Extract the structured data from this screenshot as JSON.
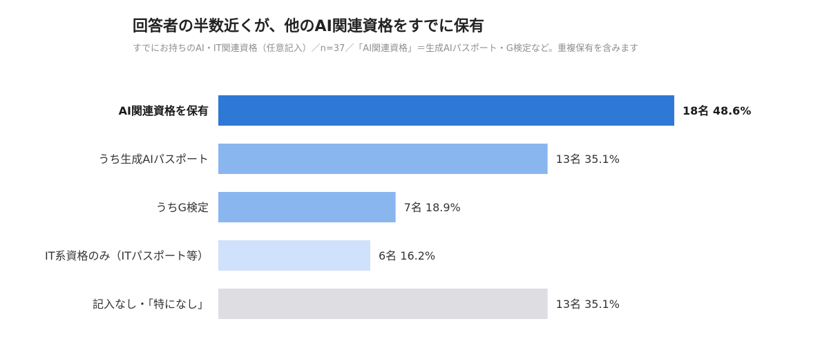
{
  "header": {
    "title": "回答者の半数近くが、他のAI関連資格をすでに保有",
    "subtitle": "すでにお持ちのAI・IT関連資格（任意記入）／n=37／「AI関連資格」＝生成AIパスポート・G検定など。重複保有を含みます"
  },
  "chart_data": {
    "type": "bar",
    "orientation": "horizontal",
    "title": "回答者の半数近くが、他のAI関連資格をすでに保有",
    "subtitle": "すでにお持ちのAI・IT関連資格（任意記入）／n=37／「AI関連資格」＝生成AIパスポート・G検定など。重複保有を含みます",
    "categories": [
      "AI関連資格を保有",
      "うち生成AIパスポート",
      "うちG検定",
      "IT系資格のみ（ITパスポート等）",
      "記入なし・「特になし」"
    ],
    "counts": [
      18,
      13,
      7,
      6,
      13
    ],
    "percents": [
      48.6,
      35.1,
      18.9,
      16.2,
      35.1
    ],
    "value_labels": [
      "18名  48.6%",
      "13名  35.1%",
      "7名  18.9%",
      "6名  16.2%",
      "13名  35.1%"
    ],
    "colors": [
      "#2e78d6",
      "#8ab6ef",
      "#8ab6ef",
      "#cfe1fb",
      "#dedde2"
    ],
    "highlight_index": 0,
    "xlim": [
      0,
      18
    ],
    "grid": false,
    "legend": "none"
  }
}
